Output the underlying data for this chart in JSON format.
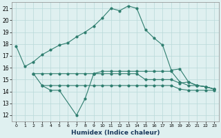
{
  "main_x": [
    0,
    1,
    2,
    3,
    4,
    5,
    6,
    7,
    8,
    9,
    10,
    11,
    12,
    13,
    14,
    15,
    16,
    17,
    18,
    19,
    20,
    21,
    22,
    23
  ],
  "main_y": [
    17.8,
    16.1,
    16.5,
    17.1,
    17.5,
    17.9,
    18.1,
    18.6,
    19.0,
    19.5,
    20.2,
    21.0,
    20.8,
    21.2,
    21.0,
    19.2,
    18.5,
    17.9,
    15.8,
    15.9,
    14.8,
    14.5,
    14.4,
    14.2
  ],
  "curve2_x": [
    2,
    3,
    4,
    5,
    7,
    8,
    9
  ],
  "curve2_y": [
    15.5,
    14.5,
    14.1,
    14.1,
    12.0,
    13.4,
    15.5
  ],
  "hline1_x": [
    2,
    3,
    4,
    5,
    6,
    7,
    8,
    9,
    10,
    11,
    12,
    13,
    14,
    15,
    16,
    17,
    18,
    19,
    20,
    21,
    22,
    23
  ],
  "hline1_y": [
    15.5,
    15.5,
    15.5,
    15.5,
    15.5,
    15.5,
    15.5,
    15.5,
    15.7,
    15.7,
    15.7,
    15.7,
    15.7,
    15.7,
    15.7,
    15.7,
    15.7,
    14.8,
    14.5,
    14.5,
    14.4,
    14.2
  ],
  "hline2_x": [
    3,
    4,
    5,
    6,
    7,
    8,
    9,
    10,
    11,
    12,
    13,
    14,
    15,
    16,
    17,
    18,
    19,
    20,
    21,
    22,
    23
  ],
  "hline2_y": [
    14.5,
    14.5,
    14.5,
    14.5,
    14.5,
    14.5,
    14.5,
    14.5,
    14.5,
    14.5,
    14.5,
    14.5,
    14.5,
    14.5,
    14.5,
    14.5,
    14.2,
    14.1,
    14.1,
    14.1,
    14.1
  ],
  "hline3_x": [
    9,
    10,
    11,
    12,
    13,
    14,
    15,
    16,
    17,
    18,
    19,
    20,
    21,
    22,
    23
  ],
  "hline3_y": [
    15.5,
    15.5,
    15.5,
    15.5,
    15.5,
    15.5,
    15.0,
    15.0,
    15.0,
    15.0,
    14.7,
    14.8,
    14.5,
    14.4,
    14.2
  ],
  "xlabel": "Humidex (Indice chaleur)",
  "ylim": [
    11.5,
    21.5
  ],
  "xlim": [
    -0.5,
    23.5
  ],
  "yticks": [
    12,
    13,
    14,
    15,
    16,
    17,
    18,
    19,
    20,
    21
  ],
  "xticks": [
    0,
    1,
    2,
    3,
    4,
    5,
    6,
    7,
    8,
    9,
    10,
    11,
    12,
    13,
    14,
    15,
    16,
    17,
    18,
    19,
    20,
    21,
    22,
    23
  ],
  "line_color": "#2e7d6e",
  "bg_color": "#dff0f0",
  "grid_color": "#b8d8d8"
}
